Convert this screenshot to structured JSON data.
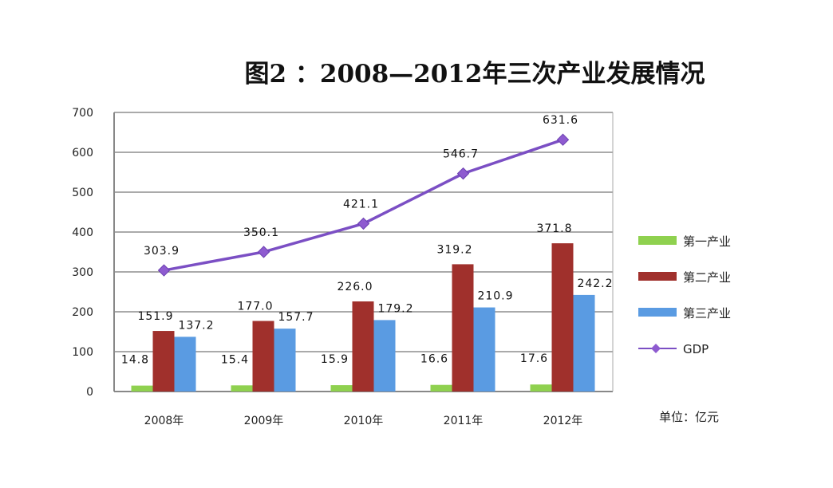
{
  "chart_data": {
    "type": "bar",
    "title": "图2 ：2008—2012年三次产业发展情况",
    "categories": [
      "2008年",
      "2009年",
      "2010年",
      "2011年",
      "2012年"
    ],
    "ylim": [
      0,
      700
    ],
    "yticks": [
      0,
      100,
      200,
      300,
      400,
      500,
      600,
      700
    ],
    "grid": true,
    "legend_placement": "right",
    "unit_note": "单位：亿元",
    "series": [
      {
        "name": "第一产业",
        "type": "bar",
        "color": "#8fd14f",
        "values": [
          14.8,
          15.4,
          15.9,
          16.6,
          17.6
        ]
      },
      {
        "name": "第二产业",
        "type": "bar",
        "color": "#a0302c",
        "values": [
          151.9,
          177.0,
          226.0,
          319.2,
          371.8
        ]
      },
      {
        "name": "第三产业",
        "type": "bar",
        "color": "#5a9be2",
        "values": [
          137.2,
          157.7,
          179.2,
          210.9,
          242.2
        ]
      },
      {
        "name": "GDP",
        "type": "line",
        "color": "#7b4fc4",
        "marker": "diamond",
        "values": [
          303.9,
          350.1,
          421.1,
          546.7,
          631.6
        ]
      }
    ]
  }
}
